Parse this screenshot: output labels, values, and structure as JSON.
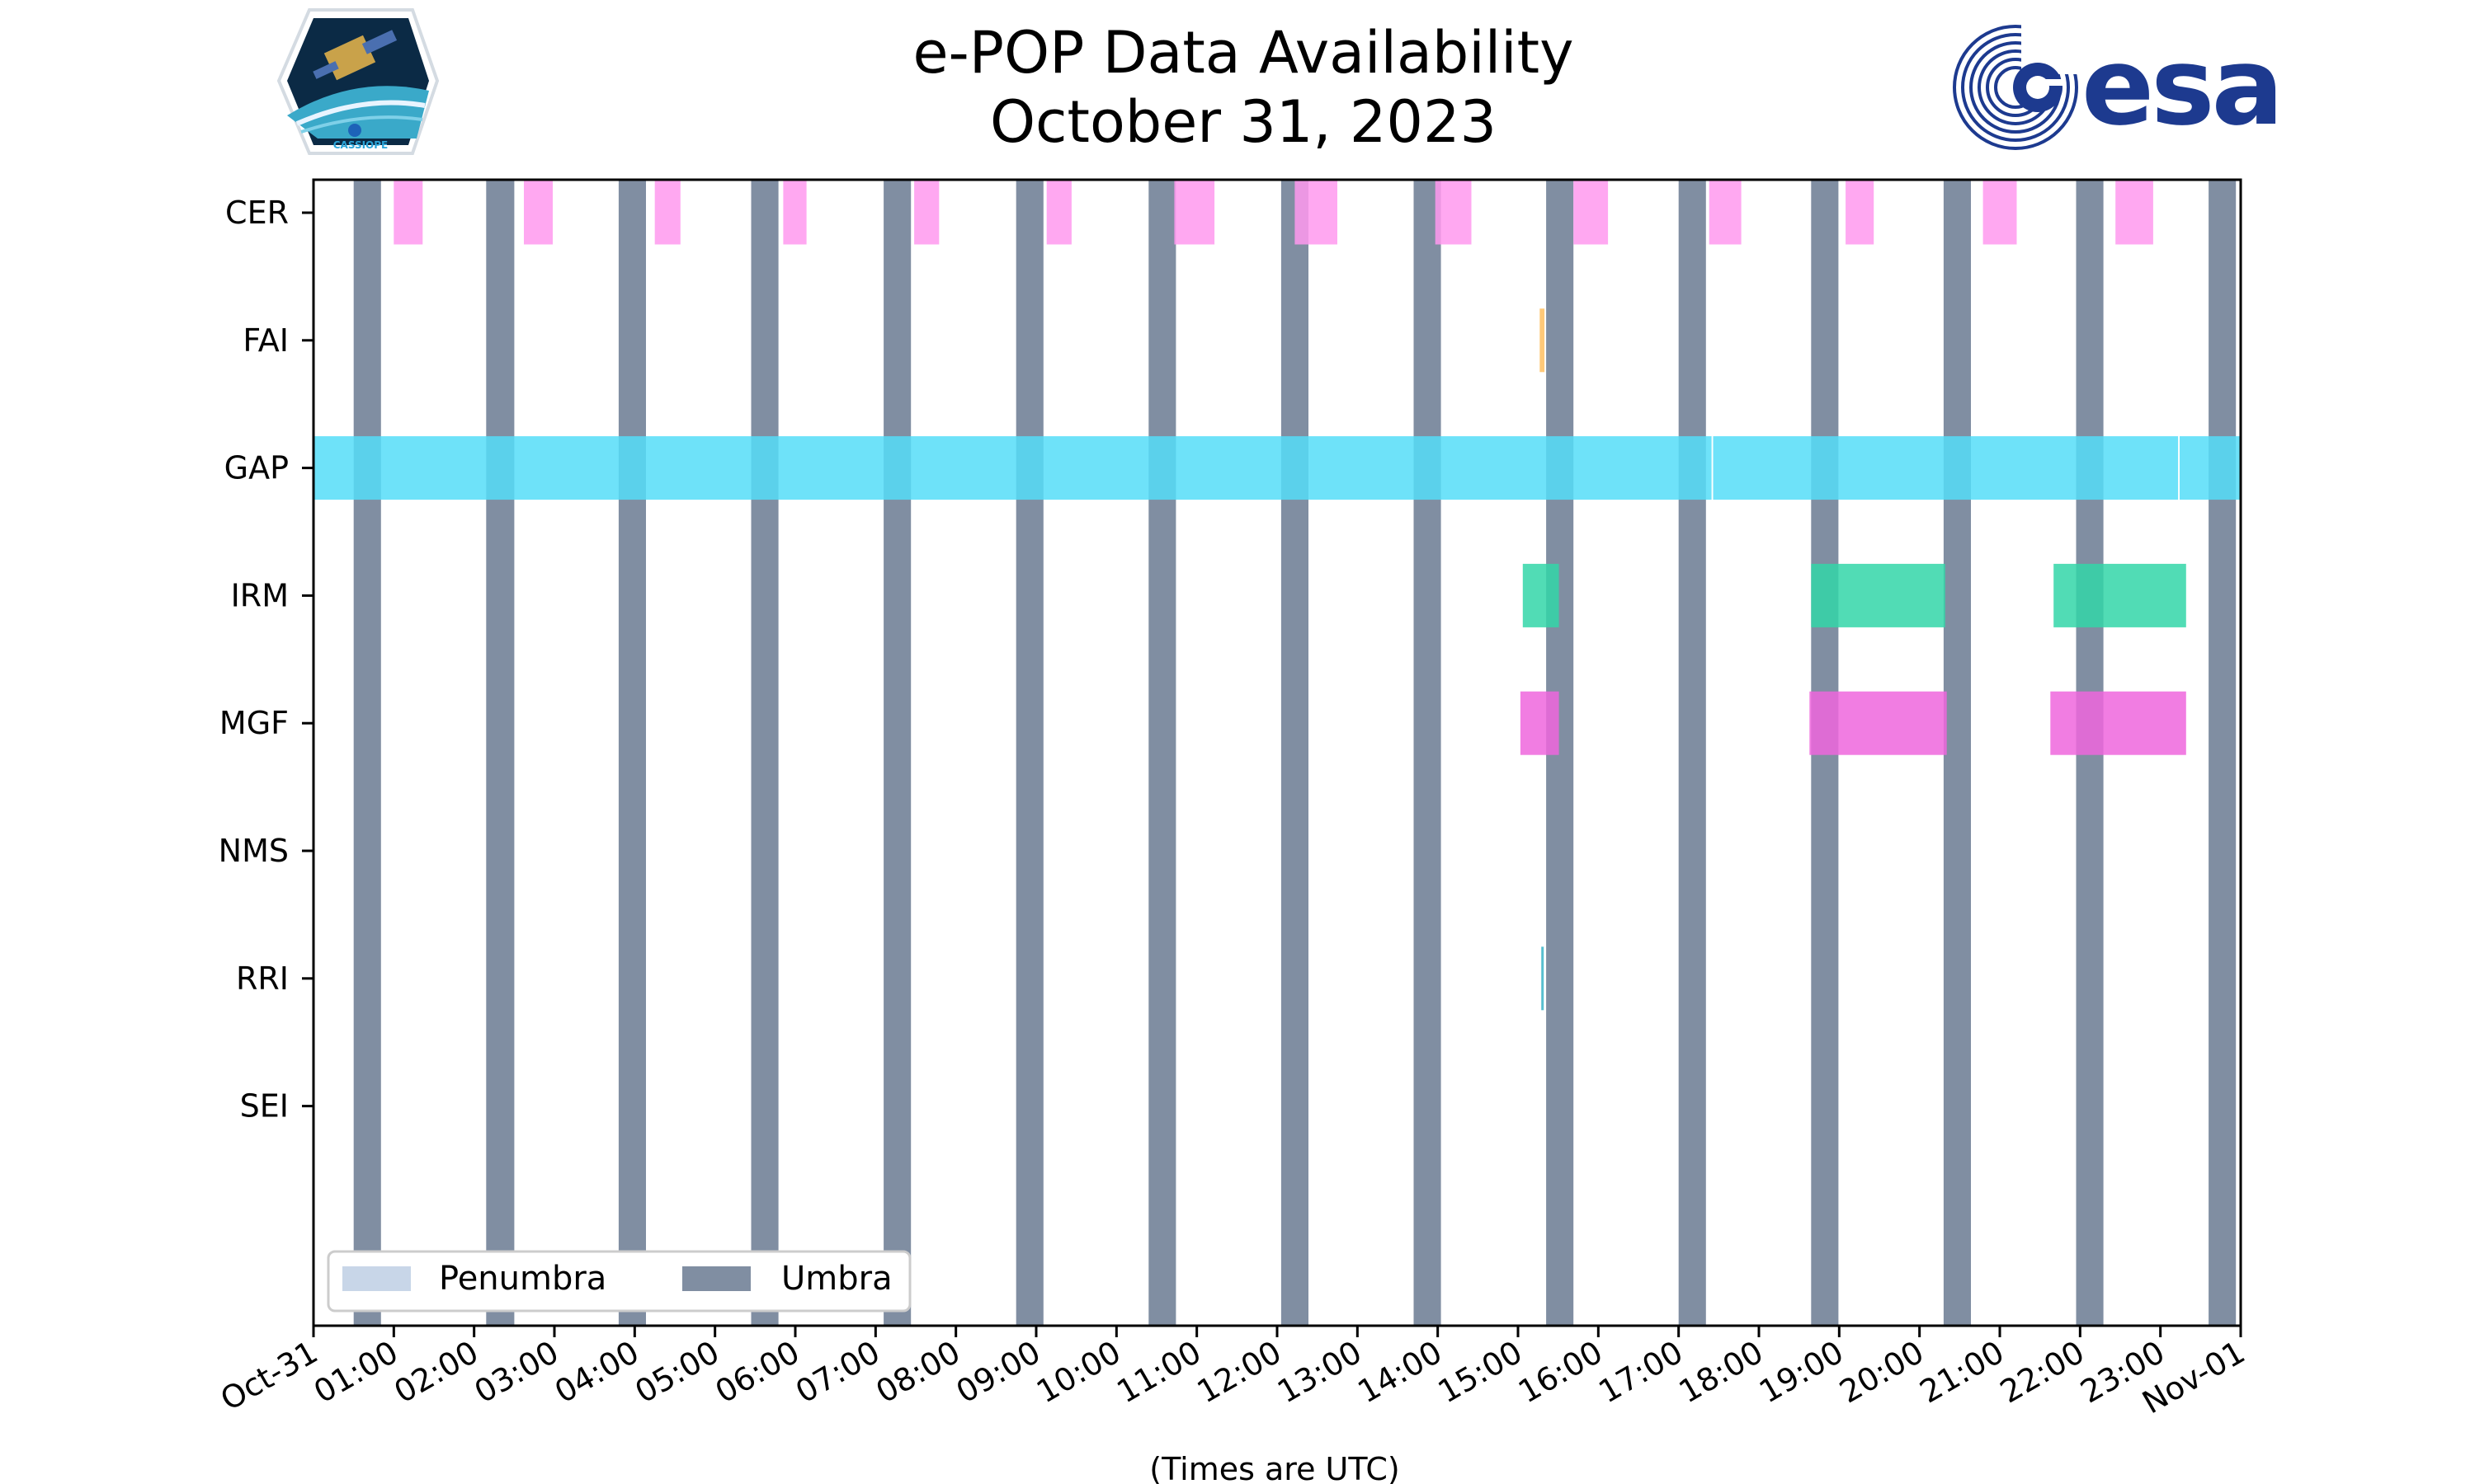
{
  "chart_data": {
    "type": "gantt",
    "title": "e-POP Data Availability",
    "subtitle": "October 31, 2023",
    "xlabel": "(Times are UTC)",
    "ylabel": "",
    "x_range_hours": [
      0,
      24
    ],
    "x_ticks": [
      {
        "hour": 0,
        "label": "Oct-31"
      },
      {
        "hour": 1,
        "label": "01:00"
      },
      {
        "hour": 2,
        "label": "02:00"
      },
      {
        "hour": 3,
        "label": "03:00"
      },
      {
        "hour": 4,
        "label": "04:00"
      },
      {
        "hour": 5,
        "label": "05:00"
      },
      {
        "hour": 6,
        "label": "06:00"
      },
      {
        "hour": 7,
        "label": "07:00"
      },
      {
        "hour": 8,
        "label": "08:00"
      },
      {
        "hour": 9,
        "label": "09:00"
      },
      {
        "hour": 10,
        "label": "10:00"
      },
      {
        "hour": 11,
        "label": "11:00"
      },
      {
        "hour": 12,
        "label": "12:00"
      },
      {
        "hour": 13,
        "label": "13:00"
      },
      {
        "hour": 14,
        "label": "14:00"
      },
      {
        "hour": 15,
        "label": "15:00"
      },
      {
        "hour": 16,
        "label": "16:00"
      },
      {
        "hour": 17,
        "label": "17:00"
      },
      {
        "hour": 18,
        "label": "18:00"
      },
      {
        "hour": 19,
        "label": "19:00"
      },
      {
        "hour": 20,
        "label": "20:00"
      },
      {
        "hour": 21,
        "label": "21:00"
      },
      {
        "hour": 22,
        "label": "22:00"
      },
      {
        "hour": 23,
        "label": "23:00"
      },
      {
        "hour": 24,
        "label": "Nov-01"
      }
    ],
    "instruments": [
      "CER",
      "FAI",
      "GAP",
      "IRM",
      "MGF",
      "NMS",
      "RRI",
      "SEI"
    ],
    "umbra_intervals": [
      [
        0.5,
        0.84
      ],
      [
        2.15,
        2.5
      ],
      [
        3.8,
        4.14
      ],
      [
        5.45,
        5.79
      ],
      [
        7.1,
        7.44
      ],
      [
        8.75,
        9.09
      ],
      [
        10.4,
        10.74
      ],
      [
        12.05,
        12.39
      ],
      [
        13.7,
        14.04
      ],
      [
        15.35,
        15.69
      ],
      [
        17.0,
        17.34
      ],
      [
        18.65,
        18.99
      ],
      [
        20.3,
        20.64
      ],
      [
        21.95,
        22.29
      ],
      [
        23.6,
        23.94
      ]
    ],
    "penumbra_intervals": [],
    "series": [
      {
        "name": "CER",
        "color": "#ff99ee",
        "intervals": [
          [
            1.0,
            1.36
          ],
          [
            2.62,
            2.98
          ],
          [
            4.25,
            4.57
          ],
          [
            5.85,
            6.14
          ],
          [
            7.48,
            7.79
          ],
          [
            9.13,
            9.44
          ],
          [
            10.72,
            11.22
          ],
          [
            12.22,
            12.75
          ],
          [
            13.97,
            14.42
          ],
          [
            15.69,
            16.12
          ],
          [
            17.38,
            17.78
          ],
          [
            19.08,
            19.43
          ],
          [
            20.79,
            21.21
          ],
          [
            22.44,
            22.91
          ]
        ]
      },
      {
        "name": "FAI",
        "color": "#ffc060",
        "intervals": [
          [
            15.27,
            15.33
          ]
        ]
      },
      {
        "name": "GAP",
        "color": "#55ddf8",
        "intervals": [
          [
            0.0,
            17.41
          ],
          [
            17.43,
            23.22
          ],
          [
            23.24,
            24.0
          ]
        ]
      },
      {
        "name": "IRM",
        "color": "#33d6a8",
        "intervals": [
          [
            15.06,
            15.51
          ],
          [
            18.65,
            20.32
          ],
          [
            21.67,
            23.32
          ]
        ]
      },
      {
        "name": "MGF",
        "color": "#ee66dd",
        "intervals": [
          [
            15.03,
            15.51
          ],
          [
            18.63,
            20.34
          ],
          [
            21.63,
            23.32
          ]
        ]
      },
      {
        "name": "NMS",
        "color": "#999999",
        "intervals": []
      },
      {
        "name": "RRI",
        "color": "#3bb4c8",
        "intervals": [
          [
            15.29,
            15.32
          ]
        ]
      },
      {
        "name": "SEI",
        "color": "#999999",
        "intervals": []
      }
    ],
    "legend": {
      "location": "lower-left",
      "entries": [
        {
          "label": "Penumbra",
          "color": "#c8d6e8"
        },
        {
          "label": "Umbra",
          "color": "#808ea2"
        }
      ]
    }
  },
  "logos": {
    "cassiope": {
      "text": "CASSIOPE"
    },
    "esa": {
      "text": "esa",
      "color": "#1d3a8f"
    }
  },
  "colors": {
    "umbra": "#808ea2",
    "penumbra": "#c8d6e8"
  }
}
